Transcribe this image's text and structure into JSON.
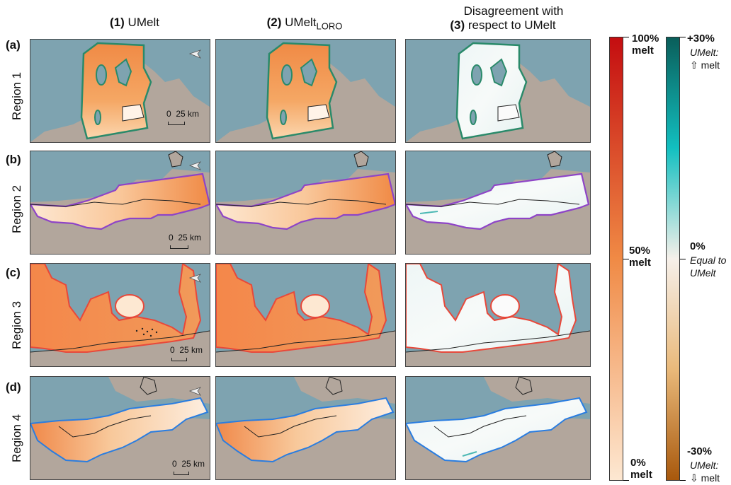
{
  "columns": [
    {
      "num": "(1)",
      "title": "UMelt"
    },
    {
      "num": "(2)",
      "title": "UMelt",
      "sub": "LORO"
    },
    {
      "num": "(3)",
      "title_line1": "Disagreement with",
      "title_line2": "respect to UMelt"
    }
  ],
  "rows": [
    {
      "label": "(a)",
      "region": "Region 1",
      "outline_color": "#2a8a6a"
    },
    {
      "label": "(b)",
      "region": "Region 2",
      "outline_color": "#8e44c7"
    },
    {
      "label": "(c)",
      "region": "Region 3",
      "outline_color": "#e8483a"
    },
    {
      "label": "(d)",
      "region": "Region 4",
      "outline_color": "#2a7de0"
    }
  ],
  "scale_bar": {
    "zero": "0",
    "distance": "25 km"
  },
  "melt_colorbar": {
    "top": {
      "value": "100%",
      "unit": "melt"
    },
    "mid": {
      "value": "50%",
      "unit": "melt"
    },
    "bottom": {
      "value": "0%",
      "unit": "melt"
    },
    "colors": [
      "#c40d10",
      "#f08a45",
      "#fde8d2"
    ]
  },
  "diff_colorbar": {
    "top": {
      "value": "+30%",
      "note": "UMelt:",
      "arrow": "⇧",
      "word": "melt"
    },
    "mid": {
      "value": "0%",
      "note1": "Equal to",
      "note2": "UMelt"
    },
    "bottom": {
      "value": "-30%",
      "note": "UMelt:",
      "arrow": "⇩",
      "word": "melt"
    },
    "colors": [
      "#0a5e5a",
      "#12bfc0",
      "#f6f0ea",
      "#e9b97a",
      "#a8580c"
    ]
  },
  "colors": {
    "ocean": "#7ea3b0",
    "land": "#b2a69c"
  }
}
